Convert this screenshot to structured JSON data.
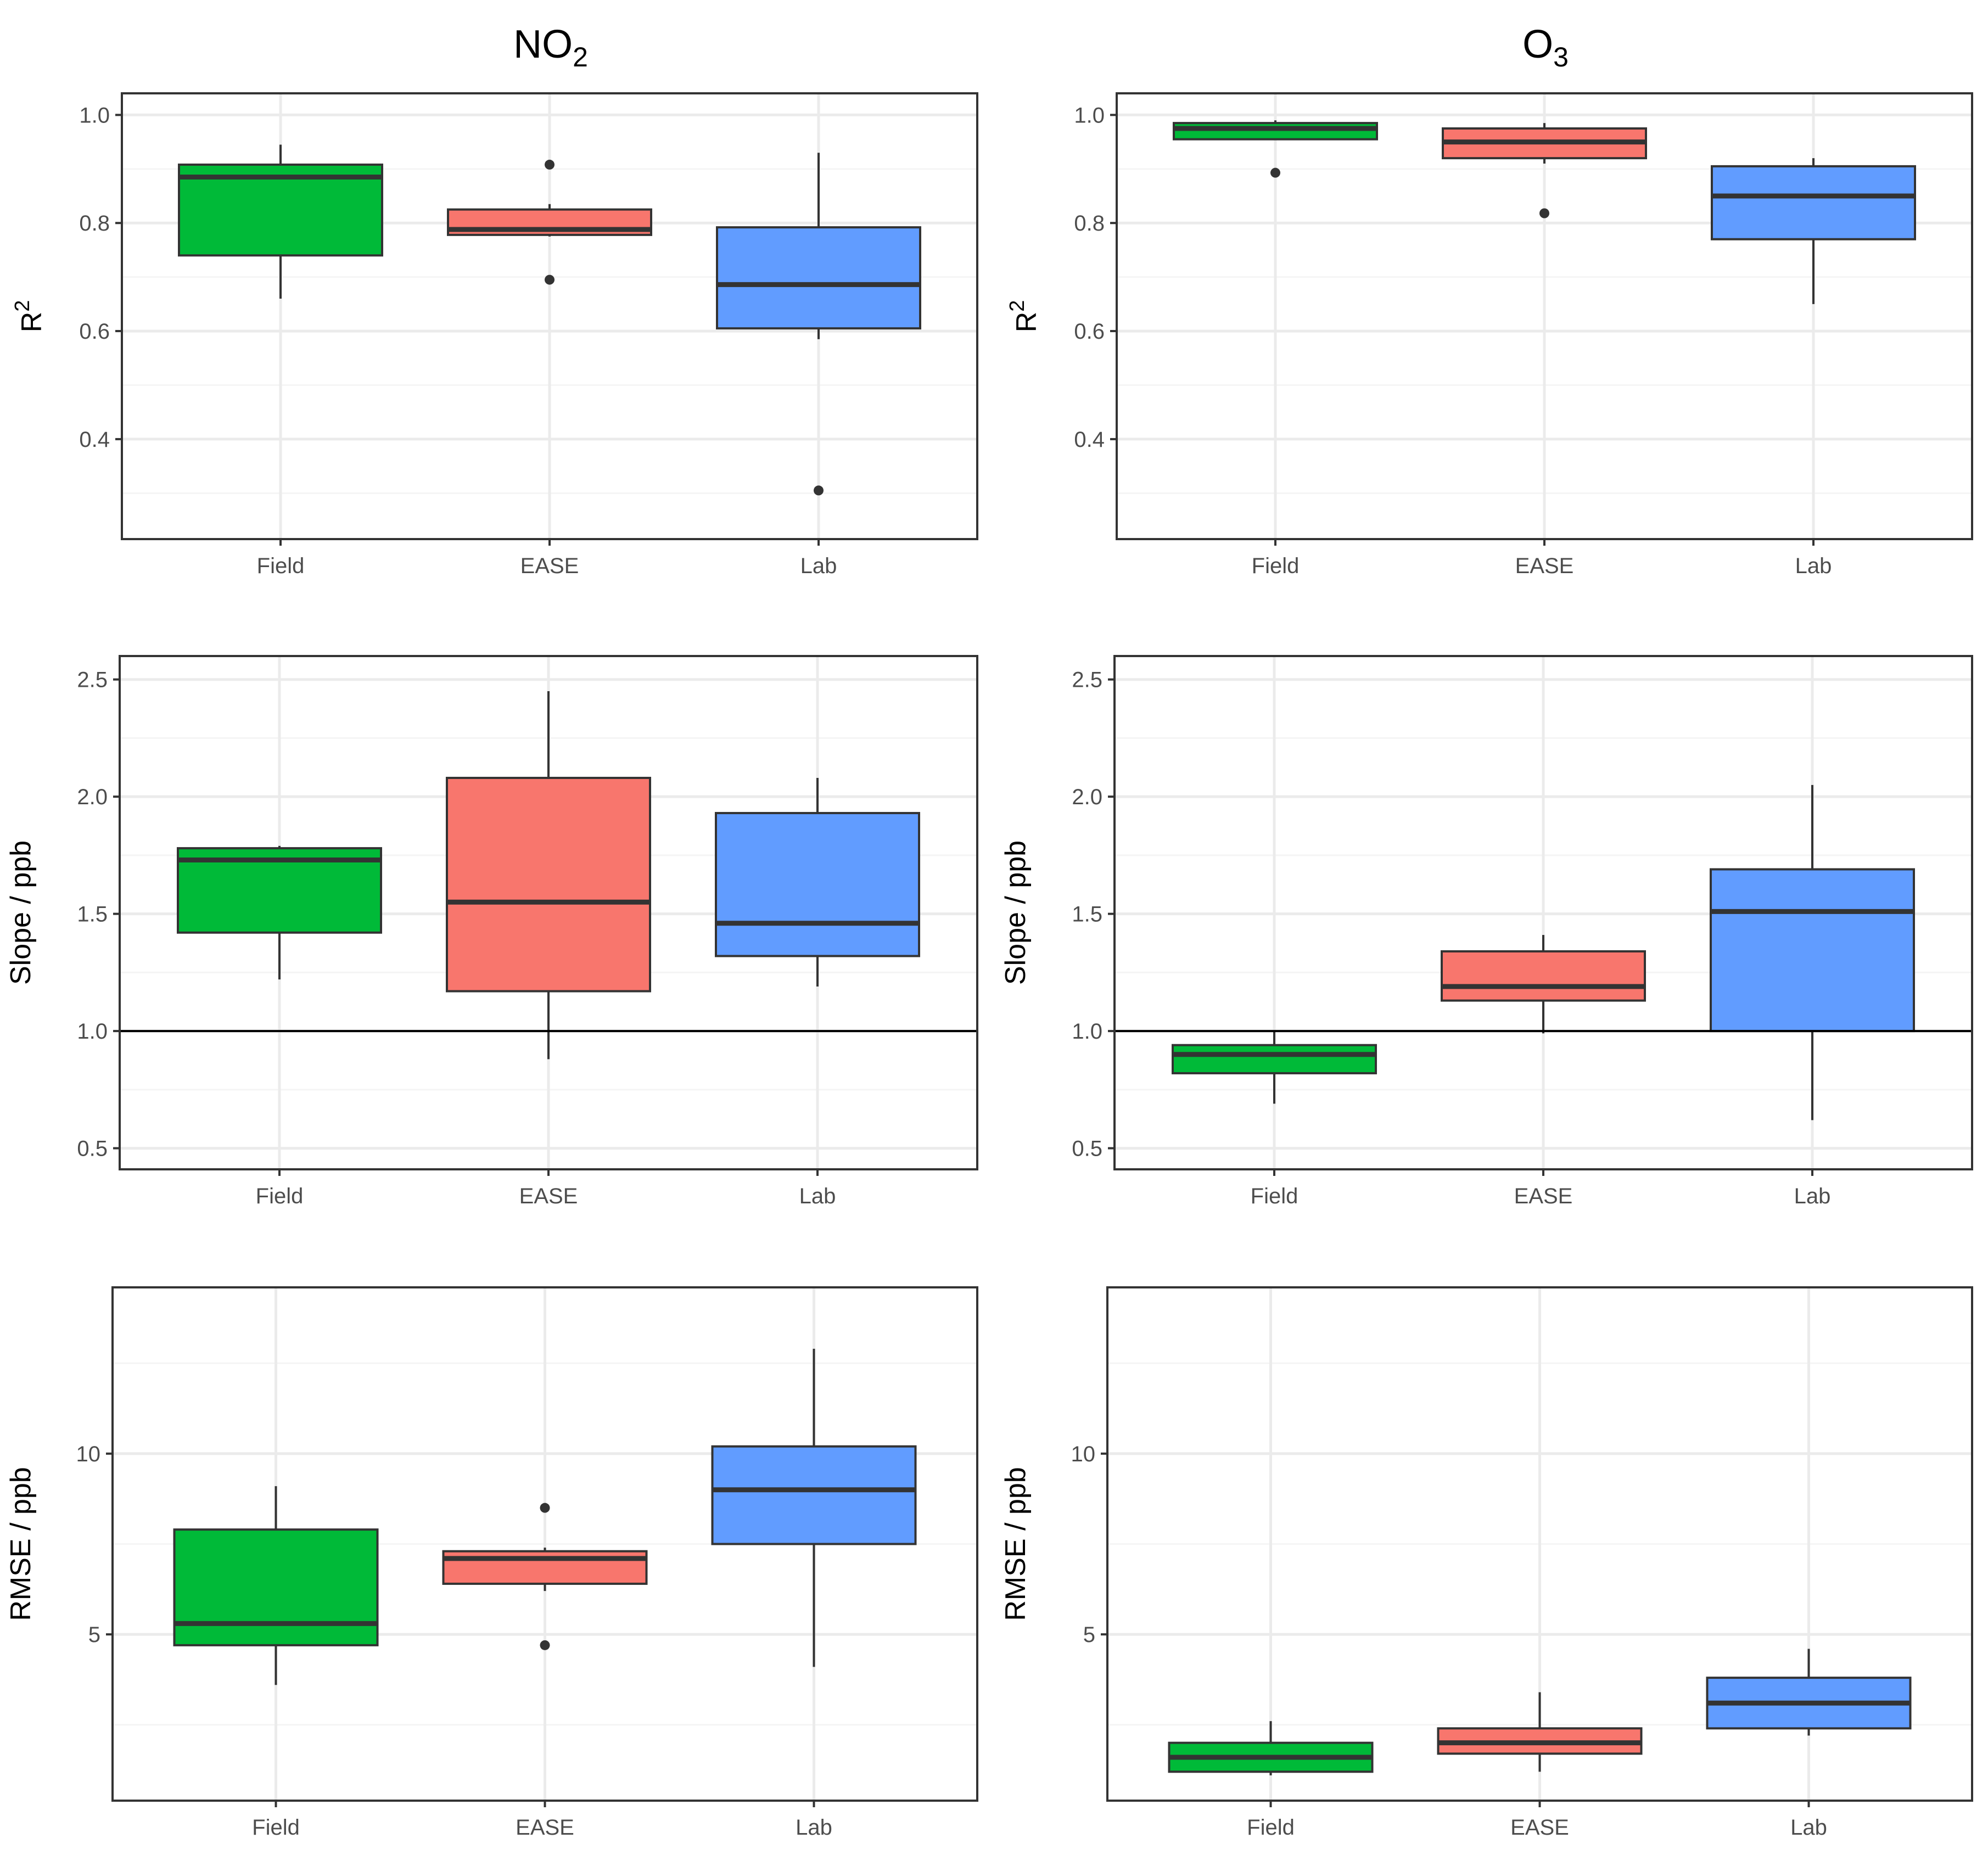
{
  "columns": [
    {
      "title_main": "NO",
      "title_sub": "2"
    },
    {
      "title_main": "O",
      "title_sub": "3"
    }
  ],
  "colors": {
    "Field": "#00BA38",
    "EASE": "#F8766D",
    "Lab": "#619CFF",
    "panel_border": "#333333",
    "grid_major": "#EBEBEB",
    "grid_minor": "#F5F5F5"
  },
  "chart_data": [
    {
      "type": "boxplot",
      "column": "NO2",
      "metric": "R2",
      "ylabel": "R",
      "ylabel_sup": "2",
      "categories": [
        "Field",
        "EASE",
        "Lab"
      ],
      "ylim": [
        0.215,
        1.04
      ],
      "yticks": [
        0.4,
        0.6,
        0.8,
        1.0
      ],
      "ytick_labels": [
        "0.4",
        "0.6",
        "0.8",
        "1.0"
      ],
      "hline": null,
      "boxes": [
        {
          "category": "Field",
          "lower_whisker": 0.66,
          "q1": 0.74,
          "median": 0.885,
          "q3": 0.908,
          "upper_whisker": 0.945,
          "outliers": []
        },
        {
          "category": "EASE",
          "lower_whisker": 0.775,
          "q1": 0.778,
          "median": 0.788,
          "q3": 0.825,
          "upper_whisker": 0.835,
          "outliers": [
            0.908,
            0.695
          ]
        },
        {
          "category": "Lab",
          "lower_whisker": 0.585,
          "q1": 0.605,
          "median": 0.686,
          "q3": 0.792,
          "upper_whisker": 0.93,
          "outliers": [
            0.305
          ]
        }
      ]
    },
    {
      "type": "boxplot",
      "column": "O3",
      "metric": "R2",
      "ylabel": "R",
      "ylabel_sup": "2",
      "categories": [
        "Field",
        "EASE",
        "Lab"
      ],
      "ylim": [
        0.215,
        1.04
      ],
      "yticks": [
        0.4,
        0.6,
        0.8,
        1.0
      ],
      "ytick_labels": [
        "0.4",
        "0.6",
        "0.8",
        "1.0"
      ],
      "hline": null,
      "boxes": [
        {
          "category": "Field",
          "lower_whisker": 0.955,
          "q1": 0.955,
          "median": 0.975,
          "q3": 0.985,
          "upper_whisker": 0.99,
          "outliers": [
            0.893
          ]
        },
        {
          "category": "EASE",
          "lower_whisker": 0.91,
          "q1": 0.92,
          "median": 0.95,
          "q3": 0.975,
          "upper_whisker": 0.985,
          "outliers": [
            0.818
          ]
        },
        {
          "category": "Lab",
          "lower_whisker": 0.65,
          "q1": 0.77,
          "median": 0.85,
          "q3": 0.905,
          "upper_whisker": 0.92,
          "outliers": []
        }
      ]
    },
    {
      "type": "boxplot",
      "column": "NO2",
      "metric": "Slope",
      "ylabel": "Slope / ppb",
      "ylabel_sup": "",
      "categories": [
        "Field",
        "EASE",
        "Lab"
      ],
      "ylim": [
        0.41,
        2.6
      ],
      "yticks": [
        0.5,
        1.0,
        1.5,
        2.0,
        2.5
      ],
      "ytick_labels": [
        "0.5",
        "1.0",
        "1.5",
        "2.0",
        "2.5"
      ],
      "hline": 1.0,
      "boxes": [
        {
          "category": "Field",
          "lower_whisker": 1.22,
          "q1": 1.42,
          "median": 1.73,
          "q3": 1.78,
          "upper_whisker": 1.79,
          "outliers": []
        },
        {
          "category": "EASE",
          "lower_whisker": 0.88,
          "q1": 1.17,
          "median": 1.55,
          "q3": 2.08,
          "upper_whisker": 2.45,
          "outliers": []
        },
        {
          "category": "Lab",
          "lower_whisker": 1.19,
          "q1": 1.32,
          "median": 1.46,
          "q3": 1.93,
          "upper_whisker": 2.08,
          "outliers": []
        }
      ]
    },
    {
      "type": "boxplot",
      "column": "O3",
      "metric": "Slope",
      "ylabel": "Slope / ppb",
      "ylabel_sup": "",
      "categories": [
        "Field",
        "EASE",
        "Lab"
      ],
      "ylim": [
        0.41,
        2.6
      ],
      "yticks": [
        0.5,
        1.0,
        1.5,
        2.0,
        2.5
      ],
      "ytick_labels": [
        "0.5",
        "1.0",
        "1.5",
        "2.0",
        "2.5"
      ],
      "hline": 1.0,
      "boxes": [
        {
          "category": "Field",
          "lower_whisker": 0.69,
          "q1": 0.82,
          "median": 0.9,
          "q3": 0.94,
          "upper_whisker": 1.0,
          "outliers": []
        },
        {
          "category": "EASE",
          "lower_whisker": 0.99,
          "q1": 1.13,
          "median": 1.19,
          "q3": 1.34,
          "upper_whisker": 1.41,
          "outliers": []
        },
        {
          "category": "Lab",
          "lower_whisker": 0.62,
          "q1": 1.0,
          "median": 1.51,
          "q3": 1.69,
          "upper_whisker": 2.05,
          "outliers": []
        }
      ]
    },
    {
      "type": "boxplot",
      "column": "NO2",
      "metric": "RMSE",
      "ylabel": "RMSE / ppb",
      "ylabel_sup": "",
      "categories": [
        "Field",
        "EASE",
        "Lab"
      ],
      "ylim": [
        0.4,
        14.6
      ],
      "yticks": [
        5,
        10
      ],
      "ytick_labels": [
        "5",
        "10"
      ],
      "hline": null,
      "boxes": [
        {
          "category": "Field",
          "lower_whisker": 3.6,
          "q1": 4.7,
          "median": 5.3,
          "q3": 7.9,
          "upper_whisker": 9.1,
          "outliers": []
        },
        {
          "category": "EASE",
          "lower_whisker": 6.2,
          "q1": 6.4,
          "median": 7.1,
          "q3": 7.3,
          "upper_whisker": 7.4,
          "outliers": [
            8.5,
            4.7
          ]
        },
        {
          "category": "Lab",
          "lower_whisker": 4.1,
          "q1": 7.5,
          "median": 9.0,
          "q3": 10.2,
          "upper_whisker": 12.9,
          "outliers": []
        }
      ]
    },
    {
      "type": "boxplot",
      "column": "O3",
      "metric": "RMSE",
      "ylabel": "RMSE / ppb",
      "ylabel_sup": "",
      "categories": [
        "Field",
        "EASE",
        "Lab"
      ],
      "ylim": [
        0.4,
        14.6
      ],
      "yticks": [
        5,
        10
      ],
      "ytick_labels": [
        "5",
        "10"
      ],
      "hline": null,
      "boxes": [
        {
          "category": "Field",
          "lower_whisker": 1.1,
          "q1": 1.2,
          "median": 1.6,
          "q3": 2.0,
          "upper_whisker": 2.6,
          "outliers": []
        },
        {
          "category": "EASE",
          "lower_whisker": 1.2,
          "q1": 1.7,
          "median": 2.0,
          "q3": 2.4,
          "upper_whisker": 3.4,
          "outliers": []
        },
        {
          "category": "Lab",
          "lower_whisker": 2.2,
          "q1": 2.4,
          "median": 3.1,
          "q3": 3.8,
          "upper_whisker": 4.6,
          "outliers": []
        }
      ]
    }
  ]
}
